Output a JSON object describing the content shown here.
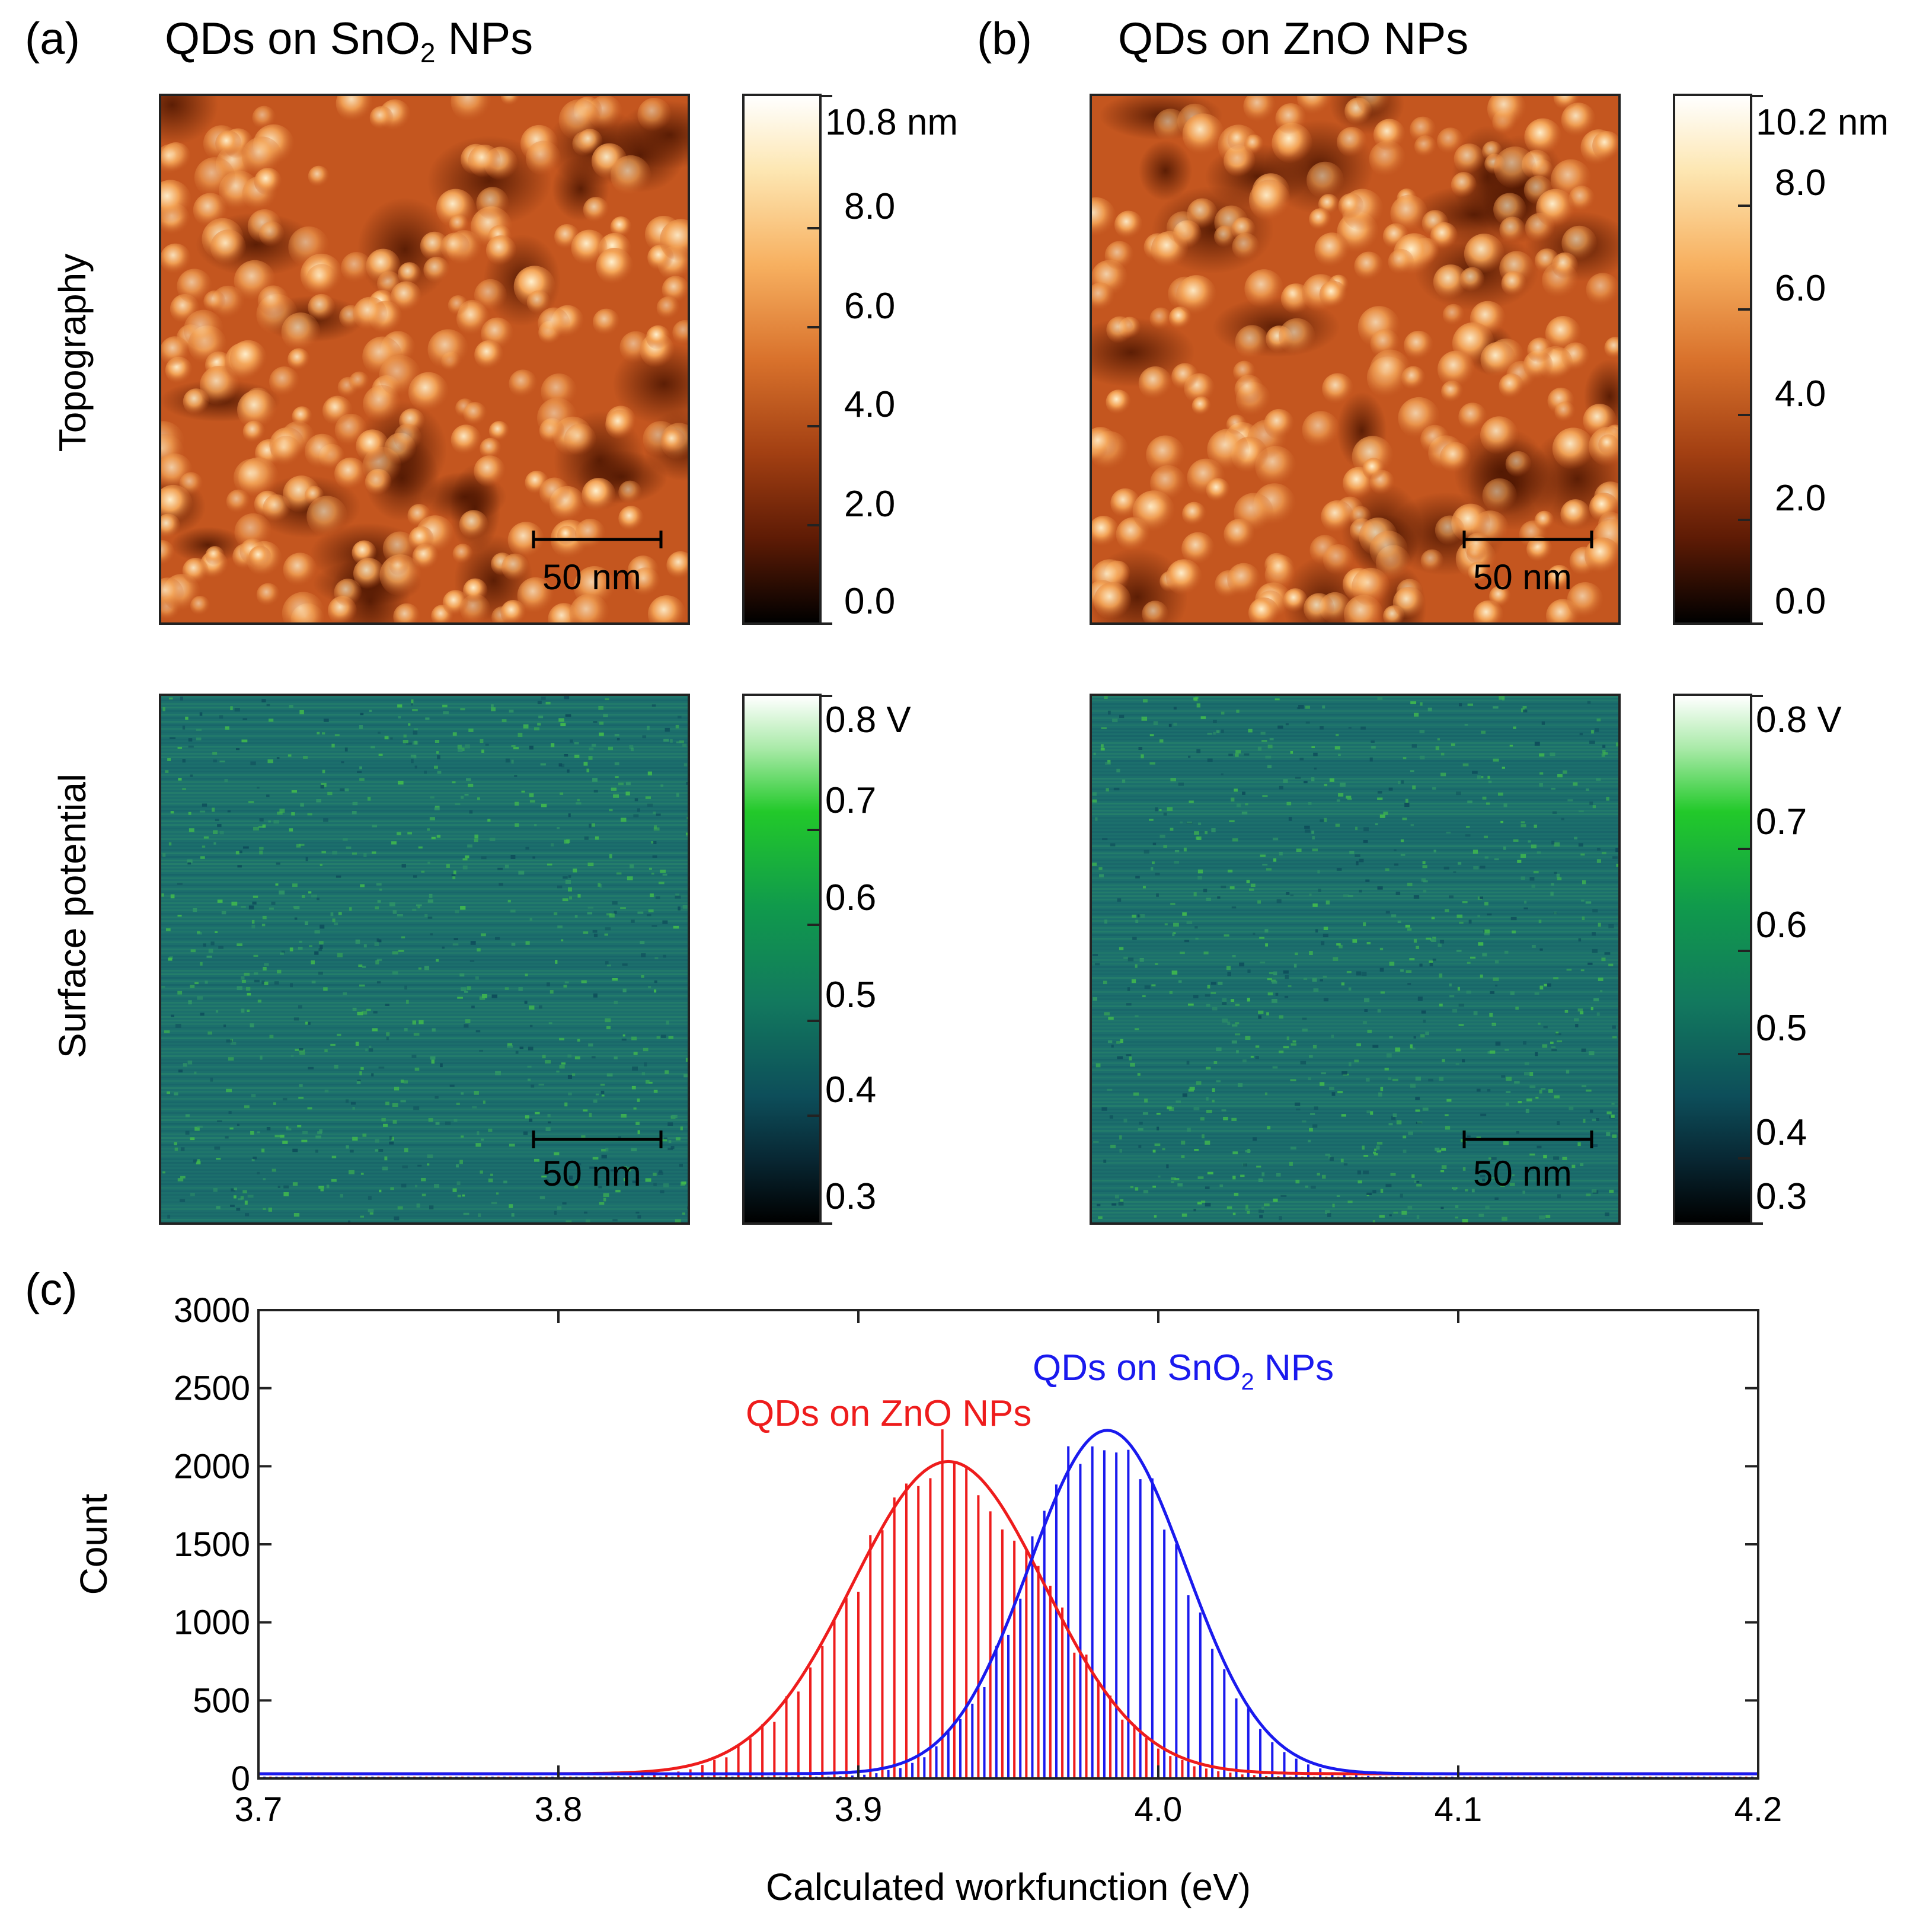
{
  "panels": {
    "a": {
      "letter": "(a)",
      "title_prefix": "QDs on SnO",
      "title_sub": "2",
      "title_suffix": " NPs"
    },
    "b": {
      "letter": "(b)",
      "title": "QDs on ZnO NPs"
    },
    "c": {
      "letter": "(c)"
    }
  },
  "row_labels": {
    "topography": "Topography",
    "surface_potential": "Surface potential"
  },
  "scale_bar": "50 nm",
  "colorbars": {
    "topo_a": [
      "10.8 nm",
      "8.0",
      "6.0",
      "4.0",
      "2.0",
      "0.0"
    ],
    "topo_b": [
      "10.2 nm",
      "8.0",
      "6.0",
      "4.0",
      "2.0",
      "0.0"
    ],
    "sp_a": [
      "0.8 V",
      "0.7",
      "0.6",
      "0.5",
      "0.4",
      "0.3"
    ],
    "sp_b": [
      "0.8 V",
      "0.7",
      "0.6",
      "0.5",
      "0.4",
      "0.3"
    ]
  },
  "colors": {
    "zno": "#ee1c1c",
    "sno2": "#1a1aee",
    "topo_bg": "#c4561f",
    "sp_bg": "#1c6f6c"
  },
  "chart_data": {
    "type": "bar",
    "xlabel": "Calculated workfunction (eV)",
    "ylabel": "Count",
    "xlim": [
      3.7,
      4.2
    ],
    "ylim": [
      0,
      3000
    ],
    "xticks": [
      "3.7",
      "3.8",
      "3.9",
      "4.0",
      "4.1",
      "4.2"
    ],
    "yticks": [
      "0",
      "500",
      "1000",
      "1500",
      "2000",
      "2500",
      "3000"
    ],
    "series": [
      {
        "name": "QDs on ZnO NPs",
        "label_prefix": "QDs on ZnO NPs",
        "label_sub": "",
        "label_suffix": "",
        "color": "#ee1c1c",
        "center": 3.93,
        "sigma": 0.032,
        "peak": 2000,
        "fit": "gaussian",
        "bins_start": 3.7,
        "bins_end": 4.2,
        "bin_step": 0.004
      },
      {
        "name": "QDs on SnO2 NPs",
        "label_prefix": "QDs on SnO",
        "label_sub": "2",
        "label_suffix": " NPs",
        "color": "#1a1aee",
        "center": 3.983,
        "sigma": 0.026,
        "peak": 2200,
        "fit": "gaussian",
        "bins_start": 3.7,
        "bins_end": 4.2,
        "bin_step": 0.004
      }
    ]
  }
}
